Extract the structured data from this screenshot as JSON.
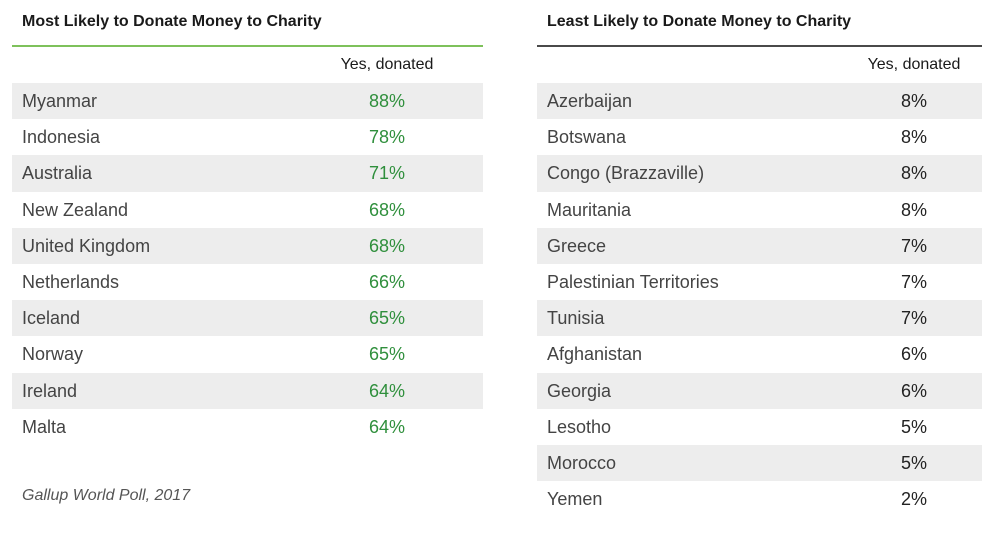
{
  "chart_data": [
    {
      "type": "table",
      "title": "Most Likely to Donate Money to Charity",
      "column_header": "Yes, donated",
      "rows": [
        {
          "country": "Myanmar",
          "value": "88%"
        },
        {
          "country": "Indonesia",
          "value": "78%"
        },
        {
          "country": "Australia",
          "value": "71%"
        },
        {
          "country": "New Zealand",
          "value": "68%"
        },
        {
          "country": "United Kingdom",
          "value": "68%"
        },
        {
          "country": "Netherlands",
          "value": "66%"
        },
        {
          "country": "Iceland",
          "value": "65%"
        },
        {
          "country": "Norway",
          "value": "65%"
        },
        {
          "country": "Ireland",
          "value": "64%"
        },
        {
          "country": "Malta",
          "value": "64%"
        }
      ],
      "accent_color": "#7ec15b",
      "value_color": "#2f8f3c"
    },
    {
      "type": "table",
      "title": "Least Likely to Donate Money to Charity",
      "column_header": "Yes, donated",
      "rows": [
        {
          "country": "Azerbaijan",
          "value": "8%"
        },
        {
          "country": "Botswana",
          "value": "8%"
        },
        {
          "country": "Congo (Brazzaville)",
          "value": "8%"
        },
        {
          "country": "Mauritania",
          "value": "8%"
        },
        {
          "country": "Greece",
          "value": "7%"
        },
        {
          "country": "Palestinian Territories",
          "value": "7%"
        },
        {
          "country": "Tunisia",
          "value": "7%"
        },
        {
          "country": "Afghanistan",
          "value": "6%"
        },
        {
          "country": "Georgia",
          "value": "6%"
        },
        {
          "country": "Lesotho",
          "value": "5%"
        },
        {
          "country": "Morocco",
          "value": "5%"
        },
        {
          "country": "Yemen",
          "value": "2%"
        }
      ],
      "accent_color": "#4a4a4a",
      "value_color": "#222222"
    }
  ],
  "source": "Gallup World Poll, 2017"
}
